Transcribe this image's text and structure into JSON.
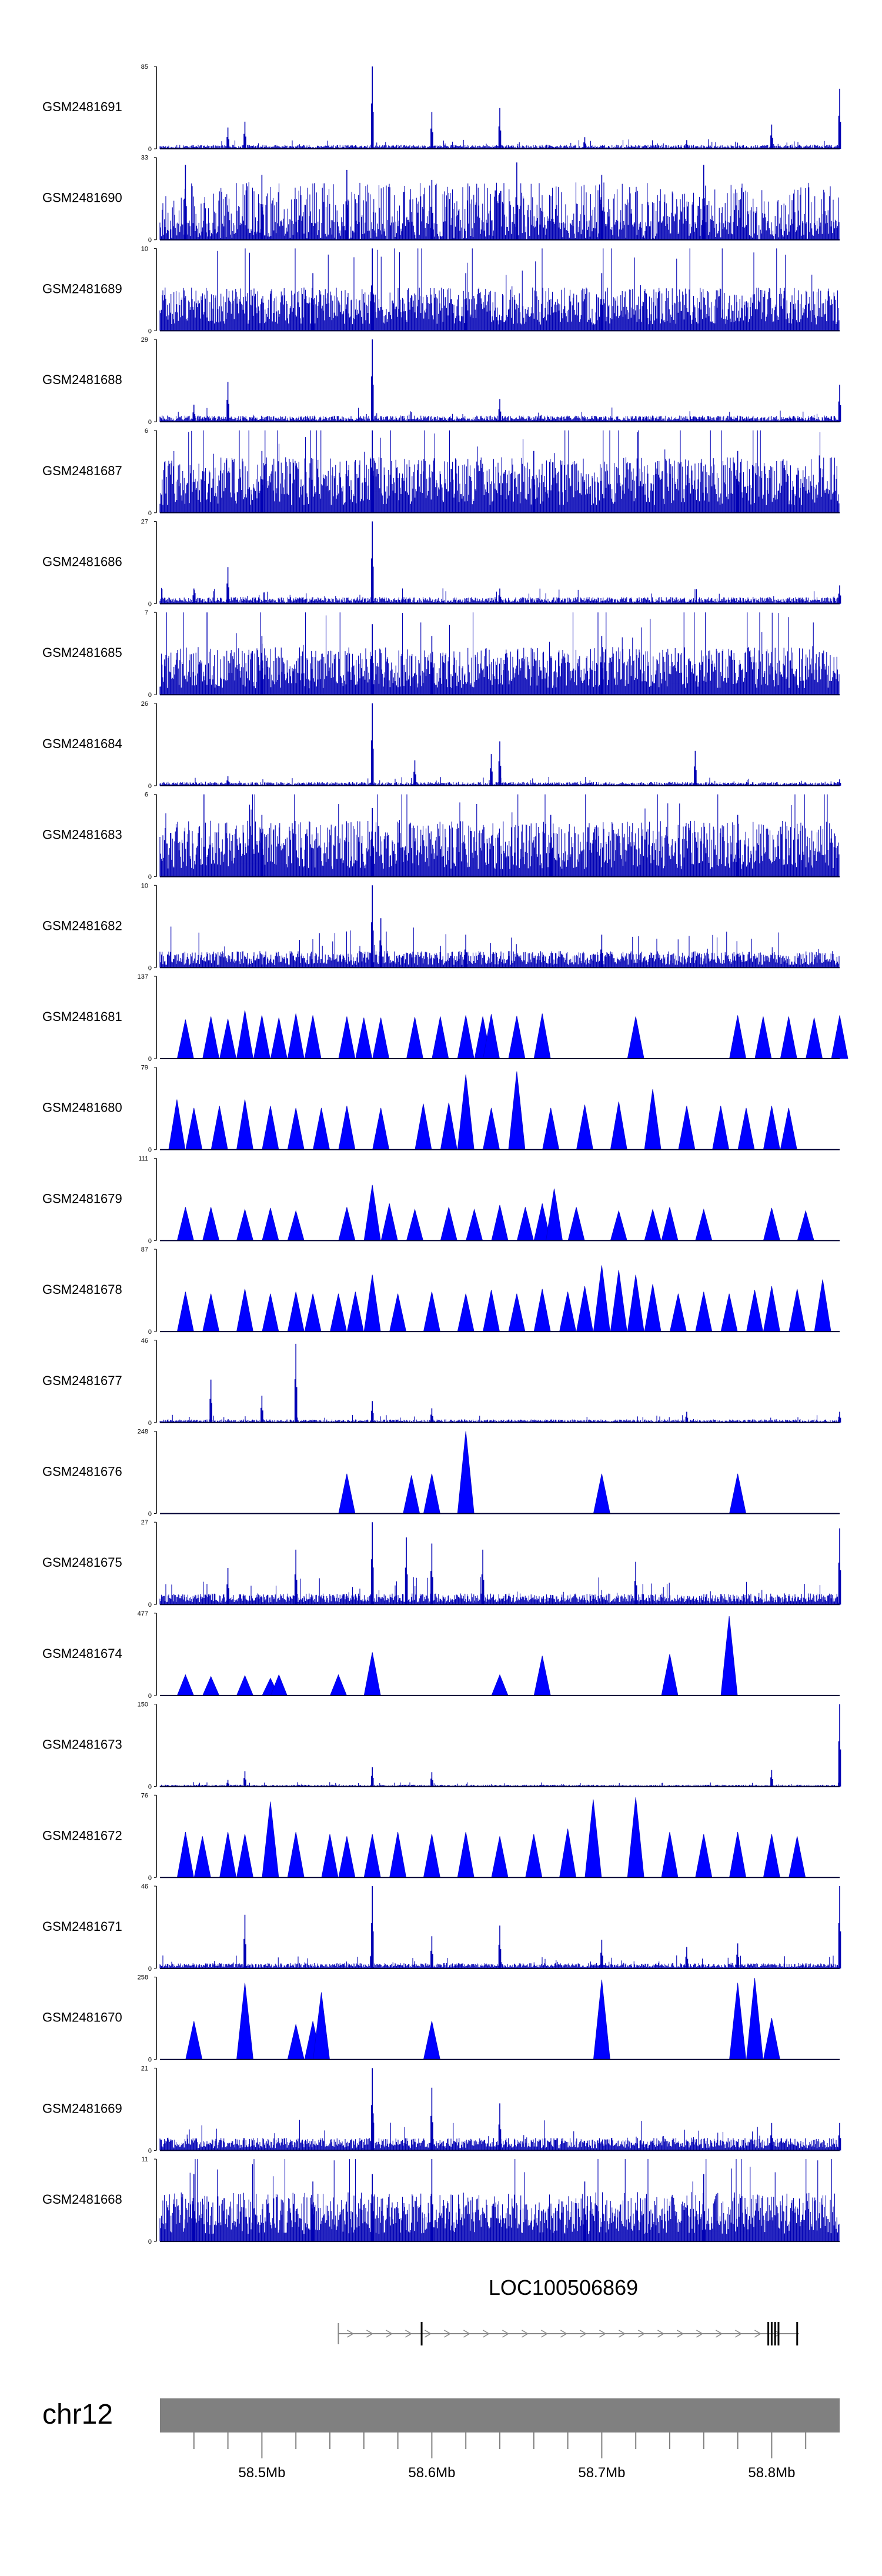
{
  "chart_data": {
    "type": "area",
    "title": "",
    "chromosome": "chr12",
    "x_axis": {
      "range": [
        58.44,
        58.84
      ],
      "unit": "Mb",
      "tick_labels": [
        {
          "value": 58.5,
          "label": "58.5Mb"
        },
        {
          "value": 58.6,
          "label": "58.6Mb"
        },
        {
          "value": 58.7,
          "label": "58.7Mb"
        },
        {
          "value": 58.8,
          "label": "58.8Mb"
        }
      ],
      "minor_ticks": [
        58.46,
        58.48,
        58.52,
        58.54,
        58.56,
        58.58,
        58.62,
        58.64,
        58.66,
        58.68,
        58.72,
        58.74,
        58.76,
        58.78,
        58.82
      ]
    },
    "gene": {
      "name": "LOC100506869",
      "start": 58.545,
      "end": 58.816,
      "exons": [
        58.594,
        58.798,
        58.8,
        58.802,
        58.804,
        58.815
      ]
    },
    "tracks": [
      {
        "name": "GSM2481691",
        "ymax": 85,
        "ymin": 0,
        "style": "signal",
        "base": 3,
        "noise": 0.55,
        "peaks": [
          [
            58.565,
            85
          ],
          [
            58.6,
            38
          ],
          [
            58.64,
            42
          ],
          [
            58.48,
            22
          ],
          [
            58.49,
            28
          ],
          [
            58.69,
            12
          ],
          [
            58.75,
            9
          ],
          [
            58.8,
            25
          ],
          [
            58.84,
            62
          ]
        ]
      },
      {
        "name": "GSM2481690",
        "ymax": 33,
        "ymin": 0,
        "style": "wedge",
        "base": 8,
        "noise": 0.6,
        "peaks": [
          [
            58.455,
            30
          ],
          [
            58.5,
            26
          ],
          [
            58.55,
            28
          ],
          [
            58.6,
            24
          ],
          [
            58.65,
            31
          ],
          [
            58.7,
            26
          ],
          [
            58.76,
            30
          ]
        ]
      },
      {
        "name": "GSM2481689",
        "ymax": 10,
        "ymin": 0,
        "style": "signal",
        "base": 3,
        "noise": 0.75,
        "peaks": [
          [
            58.565,
            10
          ],
          [
            58.53,
            7
          ],
          [
            58.62,
            7
          ],
          [
            58.7,
            7
          ]
        ]
      },
      {
        "name": "GSM2481688",
        "ymax": 29,
        "ymin": 0,
        "style": "signal",
        "base": 1.5,
        "noise": 0.6,
        "peaks": [
          [
            58.565,
            29
          ],
          [
            58.48,
            14
          ],
          [
            58.46,
            6
          ],
          [
            58.64,
            8
          ],
          [
            58.84,
            13
          ]
        ]
      },
      {
        "name": "GSM2481687",
        "ymax": 6,
        "ymin": 0,
        "style": "signal",
        "base": 2.2,
        "noise": 0.8,
        "peaks": [
          [
            58.565,
            6
          ],
          [
            58.5,
            4.5
          ],
          [
            58.66,
            4.5
          ],
          [
            58.78,
            4.5
          ]
        ]
      },
      {
        "name": "GSM2481686",
        "ymax": 27,
        "ymin": 0,
        "style": "signal",
        "base": 1.5,
        "noise": 0.6,
        "peaks": [
          [
            58.565,
            27
          ],
          [
            58.48,
            12
          ],
          [
            58.46,
            5
          ],
          [
            58.64,
            5
          ],
          [
            58.84,
            6
          ]
        ]
      },
      {
        "name": "GSM2481685",
        "ymax": 7,
        "ymin": 0,
        "style": "signal",
        "base": 2.2,
        "noise": 0.8,
        "peaks": [
          [
            58.565,
            6
          ],
          [
            58.5,
            5
          ],
          [
            58.6,
            5
          ],
          [
            58.7,
            5
          ]
        ]
      },
      {
        "name": "GSM2481684",
        "ymax": 26,
        "ymin": 0,
        "style": "signal",
        "base": 0.9,
        "noise": 0.5,
        "peaks": [
          [
            58.565,
            26
          ],
          [
            58.59,
            8
          ],
          [
            58.635,
            10
          ],
          [
            58.64,
            14
          ],
          [
            58.755,
            11
          ],
          [
            58.48,
            3
          ],
          [
            58.84,
            2
          ]
        ]
      },
      {
        "name": "GSM2481683",
        "ymax": 6,
        "ymin": 0,
        "style": "signal",
        "base": 2.2,
        "noise": 0.8,
        "peaks": [
          [
            58.565,
            5
          ],
          [
            58.5,
            4.5
          ],
          [
            58.67,
            4.5
          ],
          [
            58.78,
            4.5
          ]
        ]
      },
      {
        "name": "GSM2481682",
        "ymax": 10,
        "ymin": 0,
        "style": "signal",
        "base": 1.3,
        "noise": 0.65,
        "peaks": [
          [
            58.565,
            10
          ],
          [
            58.57,
            6
          ],
          [
            58.62,
            4
          ],
          [
            58.7,
            4
          ]
        ]
      },
      {
        "name": "GSM2481681",
        "ymax": 137,
        "ymin": 0,
        "style": "triangles",
        "peaks": [
          [
            58.455,
            65
          ],
          [
            58.47,
            70
          ],
          [
            58.48,
            66
          ],
          [
            58.49,
            80
          ],
          [
            58.5,
            72
          ],
          [
            58.51,
            68
          ],
          [
            58.52,
            62
          ],
          [
            58.52,
            75
          ],
          [
            58.53,
            72
          ],
          [
            58.55,
            70
          ],
          [
            58.56,
            68
          ],
          [
            58.57,
            68
          ],
          [
            58.59,
            69
          ],
          [
            58.605,
            70
          ],
          [
            58.62,
            72
          ],
          [
            58.63,
            70
          ],
          [
            58.635,
            74
          ],
          [
            58.65,
            71
          ],
          [
            58.665,
            75
          ],
          [
            58.72,
            70
          ],
          [
            58.78,
            72
          ],
          [
            58.795,
            70
          ],
          [
            58.81,
            70
          ],
          [
            58.825,
            68
          ],
          [
            58.84,
            72
          ]
        ]
      },
      {
        "name": "GSM2481680",
        "ymax": 79,
        "ymin": 0,
        "style": "triangles",
        "peaks": [
          [
            58.45,
            48
          ],
          [
            58.46,
            40
          ],
          [
            58.475,
            42
          ],
          [
            58.49,
            48
          ],
          [
            58.505,
            42
          ],
          [
            58.52,
            40
          ],
          [
            58.535,
            40
          ],
          [
            58.55,
            42
          ],
          [
            58.57,
            40
          ],
          [
            58.595,
            44
          ],
          [
            58.61,
            45
          ],
          [
            58.62,
            72
          ],
          [
            58.635,
            40
          ],
          [
            58.65,
            75
          ],
          [
            58.67,
            40
          ],
          [
            58.69,
            43
          ],
          [
            58.71,
            46
          ],
          [
            58.73,
            58
          ],
          [
            58.75,
            42
          ],
          [
            58.77,
            42
          ],
          [
            58.785,
            40
          ],
          [
            58.8,
            42
          ],
          [
            58.81,
            40
          ]
        ]
      },
      {
        "name": "GSM2481679",
        "ymax": 111,
        "ymin": 0,
        "style": "triangles",
        "peaks": [
          [
            58.455,
            45
          ],
          [
            58.47,
            45
          ],
          [
            58.49,
            42
          ],
          [
            58.505,
            44
          ],
          [
            58.52,
            40
          ],
          [
            58.55,
            45
          ],
          [
            58.565,
            75
          ],
          [
            58.575,
            50
          ],
          [
            58.59,
            42
          ],
          [
            58.61,
            45
          ],
          [
            58.625,
            42
          ],
          [
            58.64,
            48
          ],
          [
            58.655,
            45
          ],
          [
            58.665,
            50
          ],
          [
            58.672,
            70
          ],
          [
            58.685,
            45
          ],
          [
            58.71,
            40
          ],
          [
            58.73,
            42
          ],
          [
            58.74,
            45
          ],
          [
            58.76,
            42
          ],
          [
            58.8,
            44
          ],
          [
            58.82,
            40
          ]
        ]
      },
      {
        "name": "GSM2481678",
        "ymax": 87,
        "ymin": 0,
        "style": "triangles",
        "peaks": [
          [
            58.455,
            42
          ],
          [
            58.47,
            40
          ],
          [
            58.49,
            45
          ],
          [
            58.505,
            40
          ],
          [
            58.52,
            42
          ],
          [
            58.53,
            40
          ],
          [
            58.545,
            40
          ],
          [
            58.555,
            42
          ],
          [
            58.565,
            60
          ],
          [
            58.58,
            40
          ],
          [
            58.6,
            42
          ],
          [
            58.62,
            40
          ],
          [
            58.635,
            44
          ],
          [
            58.65,
            40
          ],
          [
            58.665,
            45
          ],
          [
            58.68,
            42
          ],
          [
            58.69,
            48
          ],
          [
            58.7,
            70
          ],
          [
            58.71,
            65
          ],
          [
            58.72,
            60
          ],
          [
            58.73,
            50
          ],
          [
            58.745,
            40
          ],
          [
            58.76,
            42
          ],
          [
            58.775,
            40
          ],
          [
            58.79,
            44
          ],
          [
            58.8,
            48
          ],
          [
            58.815,
            45
          ],
          [
            58.83,
            55
          ]
        ]
      },
      {
        "name": "GSM2481677",
        "ymax": 46,
        "ymin": 0,
        "style": "signal",
        "base": 1.2,
        "noise": 0.6,
        "peaks": [
          [
            58.47,
            24
          ],
          [
            58.52,
            44
          ],
          [
            58.5,
            15
          ],
          [
            58.565,
            12
          ],
          [
            58.6,
            8
          ],
          [
            58.75,
            6
          ],
          [
            58.84,
            6
          ]
        ]
      },
      {
        "name": "GSM2481676",
        "ymax": 248,
        "ymin": 0,
        "style": "triangles",
        "peaks": [
          [
            58.55,
            120
          ],
          [
            58.588,
            115
          ],
          [
            58.6,
            120
          ],
          [
            58.62,
            248
          ],
          [
            58.7,
            120
          ],
          [
            58.78,
            120
          ]
        ]
      },
      {
        "name": "GSM2481675",
        "ymax": 27,
        "ymin": 0,
        "style": "signal",
        "base": 2.5,
        "noise": 0.6,
        "peaks": [
          [
            58.565,
            27
          ],
          [
            58.585,
            22
          ],
          [
            58.6,
            20
          ],
          [
            58.63,
            18
          ],
          [
            58.52,
            18
          ],
          [
            58.48,
            12
          ],
          [
            58.84,
            25
          ],
          [
            58.72,
            14
          ]
        ]
      },
      {
        "name": "GSM2481674",
        "ymax": 477,
        "ymin": 0,
        "style": "triangles",
        "peaks": [
          [
            58.455,
            120
          ],
          [
            58.47,
            110
          ],
          [
            58.49,
            115
          ],
          [
            58.505,
            100
          ],
          [
            58.51,
            120
          ],
          [
            58.545,
            120
          ],
          [
            58.565,
            250
          ],
          [
            58.64,
            120
          ],
          [
            58.665,
            230
          ],
          [
            58.74,
            240
          ],
          [
            58.775,
            460
          ]
        ]
      },
      {
        "name": "GSM2481673",
        "ymax": 150,
        "ymin": 0,
        "style": "signal",
        "base": 2.5,
        "noise": 0.5,
        "peaks": [
          [
            58.565,
            35
          ],
          [
            58.6,
            26
          ],
          [
            58.49,
            28
          ],
          [
            58.48,
            12
          ],
          [
            58.8,
            30
          ],
          [
            58.84,
            150
          ]
        ]
      },
      {
        "name": "GSM2481672",
        "ymax": 76,
        "ymin": 0,
        "style": "triangles",
        "peaks": [
          [
            58.455,
            42
          ],
          [
            58.465,
            38
          ],
          [
            58.48,
            42
          ],
          [
            58.49,
            40
          ],
          [
            58.505,
            70
          ],
          [
            58.52,
            42
          ],
          [
            58.54,
            40
          ],
          [
            58.55,
            38
          ],
          [
            58.565,
            40
          ],
          [
            58.58,
            42
          ],
          [
            58.6,
            40
          ],
          [
            58.62,
            42
          ],
          [
            58.64,
            38
          ],
          [
            58.66,
            40
          ],
          [
            58.68,
            45
          ],
          [
            58.695,
            72
          ],
          [
            58.72,
            74
          ],
          [
            58.74,
            42
          ],
          [
            58.76,
            40
          ],
          [
            58.78,
            42
          ],
          [
            58.8,
            40
          ],
          [
            58.815,
            38
          ]
        ]
      },
      {
        "name": "GSM2481671",
        "ymax": 46,
        "ymin": 0,
        "style": "signal",
        "base": 2.2,
        "noise": 0.55,
        "peaks": [
          [
            58.565,
            46
          ],
          [
            58.49,
            30
          ],
          [
            58.6,
            18
          ],
          [
            58.64,
            24
          ],
          [
            58.7,
            16
          ],
          [
            58.75,
            12
          ],
          [
            58.78,
            14
          ],
          [
            58.84,
            46
          ]
        ]
      },
      {
        "name": "GSM2481670",
        "ymax": 258,
        "ymin": 0,
        "style": "triangles",
        "peaks": [
          [
            58.46,
            120
          ],
          [
            58.49,
            240
          ],
          [
            58.52,
            110
          ],
          [
            58.53,
            120
          ],
          [
            58.535,
            210
          ],
          [
            58.6,
            120
          ],
          [
            58.7,
            250
          ],
          [
            58.78,
            240
          ],
          [
            58.79,
            255
          ],
          [
            58.8,
            130
          ]
        ]
      },
      {
        "name": "GSM2481669",
        "ymax": 21,
        "ymin": 0,
        "style": "signal",
        "base": 2.2,
        "noise": 0.6,
        "peaks": [
          [
            58.565,
            21
          ],
          [
            58.6,
            16
          ],
          [
            58.64,
            12
          ],
          [
            58.8,
            7
          ],
          [
            58.84,
            7
          ]
        ]
      },
      {
        "name": "GSM2481668",
        "ymax": 11,
        "ymin": 0,
        "style": "signal",
        "base": 4,
        "noise": 0.7,
        "peaks": [
          [
            58.6,
            11
          ],
          [
            58.565,
            9
          ],
          [
            58.46,
            9
          ],
          [
            58.53,
            8
          ],
          [
            58.69,
            8
          ],
          [
            58.76,
            9
          ]
        ]
      }
    ]
  }
}
